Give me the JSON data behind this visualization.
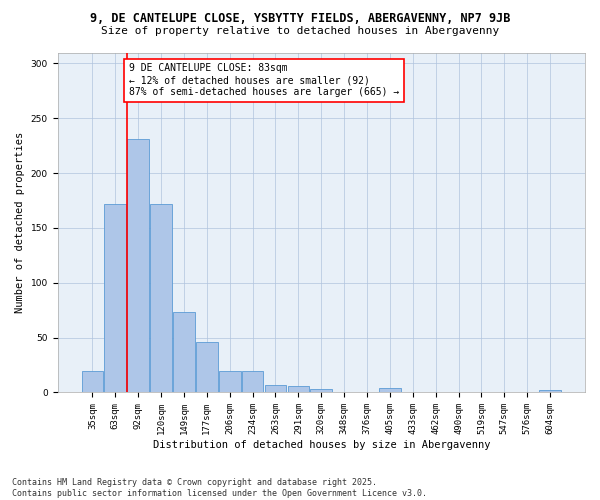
{
  "title": "9, DE CANTELUPE CLOSE, YSBYTTY FIELDS, ABERGAVENNY, NP7 9JB",
  "subtitle": "Size of property relative to detached houses in Abergavenny",
  "xlabel": "Distribution of detached houses by size in Abergavenny",
  "ylabel": "Number of detached properties",
  "categories": [
    "35sqm",
    "63sqm",
    "92sqm",
    "120sqm",
    "149sqm",
    "177sqm",
    "206sqm",
    "234sqm",
    "263sqm",
    "291sqm",
    "320sqm",
    "348sqm",
    "376sqm",
    "405sqm",
    "433sqm",
    "462sqm",
    "490sqm",
    "519sqm",
    "547sqm",
    "576sqm",
    "604sqm"
  ],
  "values": [
    20,
    172,
    231,
    172,
    73,
    46,
    20,
    20,
    7,
    6,
    3,
    0,
    0,
    4,
    0,
    0,
    0,
    0,
    0,
    0,
    2
  ],
  "bar_color": "#aec6e8",
  "bar_edge_color": "#5b9bd5",
  "vline_color": "red",
  "annotation_text": "9 DE CANTELUPE CLOSE: 83sqm\n← 12% of detached houses are smaller (92)\n87% of semi-detached houses are larger (665) →",
  "annotation_box_color": "white",
  "annotation_box_edge": "red",
  "ylim": [
    0,
    310
  ],
  "yticks": [
    0,
    50,
    100,
    150,
    200,
    250,
    300
  ],
  "grid_color": "#b0c4de",
  "bg_color": "#e8f0f8",
  "footer": "Contains HM Land Registry data © Crown copyright and database right 2025.\nContains public sector information licensed under the Open Government Licence v3.0.",
  "title_fontsize": 8.5,
  "subtitle_fontsize": 8,
  "axis_label_fontsize": 7.5,
  "tick_fontsize": 6.5,
  "annotation_fontsize": 7,
  "footer_fontsize": 6
}
